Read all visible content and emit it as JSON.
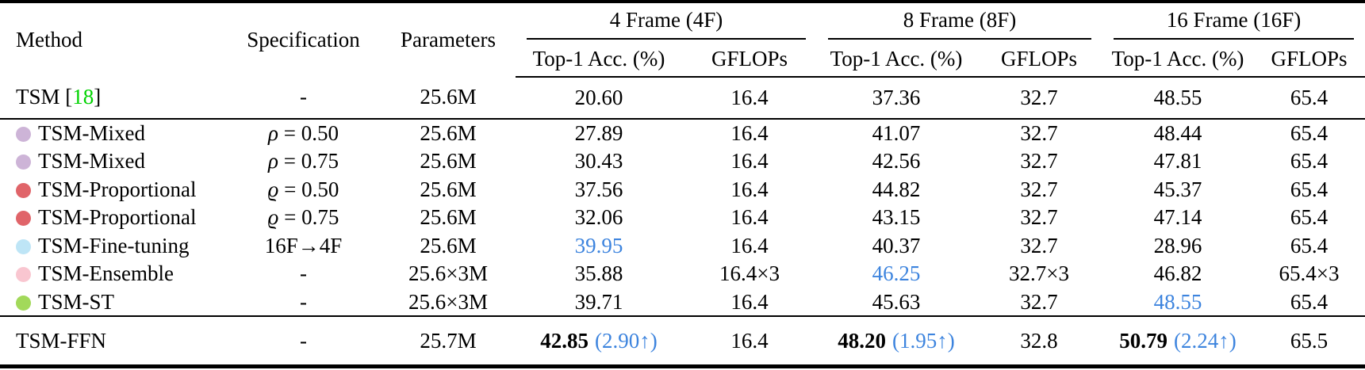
{
  "colors": {
    "highlight_blue": "#3d84de",
    "cite_green": "#00d300",
    "dot_mixed": "#cdb4d7",
    "dot_proportional": "#e06469",
    "dot_finetuning": "#bee5f6",
    "dot_ensemble": "#f9c6d0",
    "dot_st": "#a2d95a"
  },
  "header": {
    "method": "Method",
    "specification": "Specification",
    "parameters": "Parameters",
    "groups": [
      {
        "label": "4 Frame (4F)"
      },
      {
        "label": "8 Frame (8F)"
      },
      {
        "label": "16 Frame (16F)"
      }
    ],
    "sub_acc": "Top-1 Acc. (%)",
    "sub_flops": "GFLOPs"
  },
  "rows": [
    {
      "method": "TSM",
      "cite": {
        "open": " [",
        "num": "18",
        "close": "]"
      },
      "dot": null,
      "spec": {
        "sym": "",
        "rest": "-"
      },
      "params": "25.6M",
      "cells": [
        {
          "t": "20.60"
        },
        {
          "t": "16.4"
        },
        {
          "t": "37.36"
        },
        {
          "t": "32.7"
        },
        {
          "t": "48.55"
        },
        {
          "t": "65.4"
        }
      ]
    },
    {
      "method": "TSM-Mixed",
      "dot": "dot_mixed",
      "spec": {
        "sym": "ρ",
        "rest": " = 0.50"
      },
      "params": "25.6M",
      "cells": [
        {
          "t": "27.89"
        },
        {
          "t": "16.4"
        },
        {
          "t": "41.07"
        },
        {
          "t": "32.7"
        },
        {
          "t": "48.44"
        },
        {
          "t": "65.4"
        }
      ]
    },
    {
      "method": "TSM-Mixed",
      "dot": "dot_mixed",
      "spec": {
        "sym": "ρ",
        "rest": " = 0.75"
      },
      "params": "25.6M",
      "cells": [
        {
          "t": "30.43"
        },
        {
          "t": "16.4"
        },
        {
          "t": "42.56"
        },
        {
          "t": "32.7"
        },
        {
          "t": "47.81"
        },
        {
          "t": "65.4"
        }
      ]
    },
    {
      "method": "TSM-Proportional",
      "dot": "dot_proportional",
      "spec": {
        "sym": "ϱ",
        "rest": " = 0.50"
      },
      "params": "25.6M",
      "cells": [
        {
          "t": "37.56"
        },
        {
          "t": "16.4"
        },
        {
          "t": "44.82"
        },
        {
          "t": "32.7"
        },
        {
          "t": "45.37"
        },
        {
          "t": "65.4"
        }
      ]
    },
    {
      "method": "TSM-Proportional",
      "dot": "dot_proportional",
      "spec": {
        "sym": "ϱ",
        "rest": " = 0.75"
      },
      "params": "25.6M",
      "cells": [
        {
          "t": "32.06"
        },
        {
          "t": "16.4"
        },
        {
          "t": "43.15"
        },
        {
          "t": "32.7"
        },
        {
          "t": "47.14"
        },
        {
          "t": "65.4"
        }
      ]
    },
    {
      "method": "TSM-Fine-tuning",
      "dot": "dot_finetuning",
      "spec": {
        "sym": "",
        "rest": "16F→4F"
      },
      "params": "25.6M",
      "cells": [
        {
          "t": "39.95",
          "blue": true
        },
        {
          "t": "16.4"
        },
        {
          "t": "40.37"
        },
        {
          "t": "32.7"
        },
        {
          "t": "28.96"
        },
        {
          "t": "65.4"
        }
      ]
    },
    {
      "method": "TSM-Ensemble",
      "dot": "dot_ensemble",
      "spec": {
        "sym": "",
        "rest": "-"
      },
      "params": "25.6×3M",
      "cells": [
        {
          "t": "35.88"
        },
        {
          "t": "16.4×3"
        },
        {
          "t": "46.25",
          "blue": true
        },
        {
          "t": "32.7×3"
        },
        {
          "t": "46.82"
        },
        {
          "t": "65.4×3"
        }
      ]
    },
    {
      "method": "TSM-ST",
      "dot": "dot_st",
      "spec": {
        "sym": "",
        "rest": "-"
      },
      "params": "25.6×3M",
      "cells": [
        {
          "t": "39.71"
        },
        {
          "t": "16.4"
        },
        {
          "t": "45.63"
        },
        {
          "t": "32.7"
        },
        {
          "t": "48.55",
          "blue": true
        },
        {
          "t": "65.4"
        }
      ]
    },
    {
      "method": "TSM-FFN",
      "dot": null,
      "spec": {
        "sym": "",
        "rest": "-"
      },
      "params": "25.7M",
      "cells": [
        {
          "t": "42.85",
          "bold": true,
          "delta": "(2.90↑)"
        },
        {
          "t": "16.4"
        },
        {
          "t": "48.20",
          "bold": true,
          "delta": "(1.95↑)"
        },
        {
          "t": "32.8"
        },
        {
          "t": "50.79",
          "bold": true,
          "delta": "(2.24↑)"
        },
        {
          "t": "65.5"
        }
      ]
    }
  ]
}
